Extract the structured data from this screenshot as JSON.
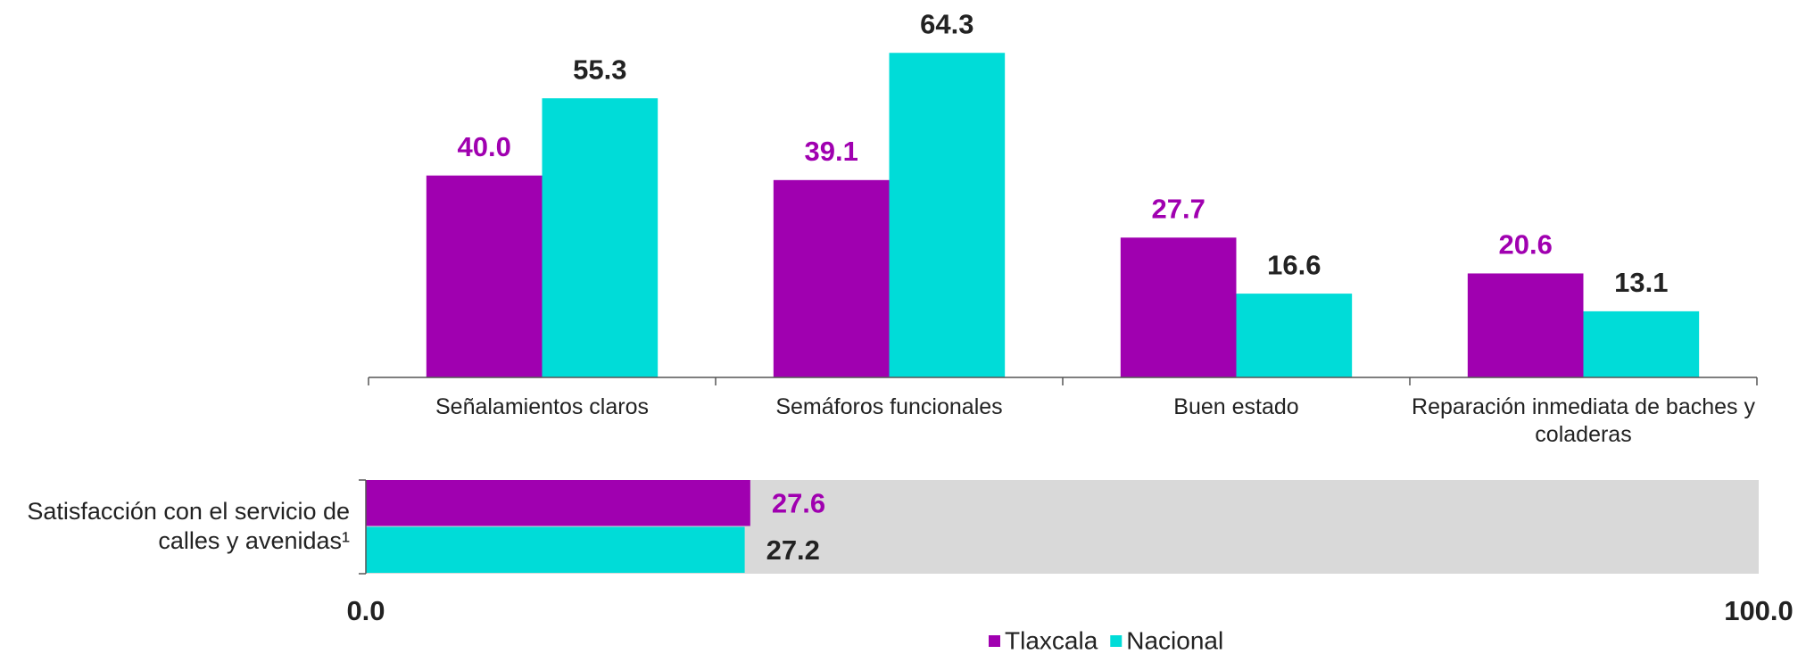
{
  "chart_data": [
    {
      "type": "bar",
      "categories": [
        "Señalamientos claros",
        "Semáforos funcionales",
        "Buen estado",
        "Reparación inmediata de baches y coladeras"
      ],
      "series": [
        {
          "name": "Tlaxcala",
          "color": "#a000b0",
          "label_color": "#a000b0",
          "values": [
            40.0,
            39.1,
            27.7,
            20.6
          ],
          "value_labels": [
            "40.0",
            "39.1",
            "27.7",
            "20.6"
          ]
        },
        {
          "name": "Nacional",
          "color": "#00dcd8",
          "label_color": "#222222",
          "values": [
            55.3,
            64.3,
            16.6,
            13.1
          ],
          "value_labels": [
            "55.3",
            "64.3",
            "16.6",
            "13.1"
          ]
        }
      ],
      "ylim": [
        0,
        70
      ]
    },
    {
      "type": "hbar",
      "categories": [
        "Satisfacción con el servicio de calles y avenidas¹"
      ],
      "series": [
        {
          "name": "Tlaxcala",
          "color": "#a000b0",
          "label_color": "#a000b0",
          "values": [
            27.6
          ],
          "value_labels": [
            "27.6"
          ]
        },
        {
          "name": "Nacional",
          "color": "#00dcd8",
          "label_color": "#222222",
          "values": [
            27.2
          ],
          "value_labels": [
            "27.2"
          ]
        }
      ],
      "xlim": [
        0,
        100
      ],
      "xticks": [
        {
          "value": 0,
          "label": "0.0"
        },
        {
          "value": 100,
          "label": "100.0"
        }
      ],
      "background": "#d9d9d9",
      "legend": "bottom"
    }
  ]
}
